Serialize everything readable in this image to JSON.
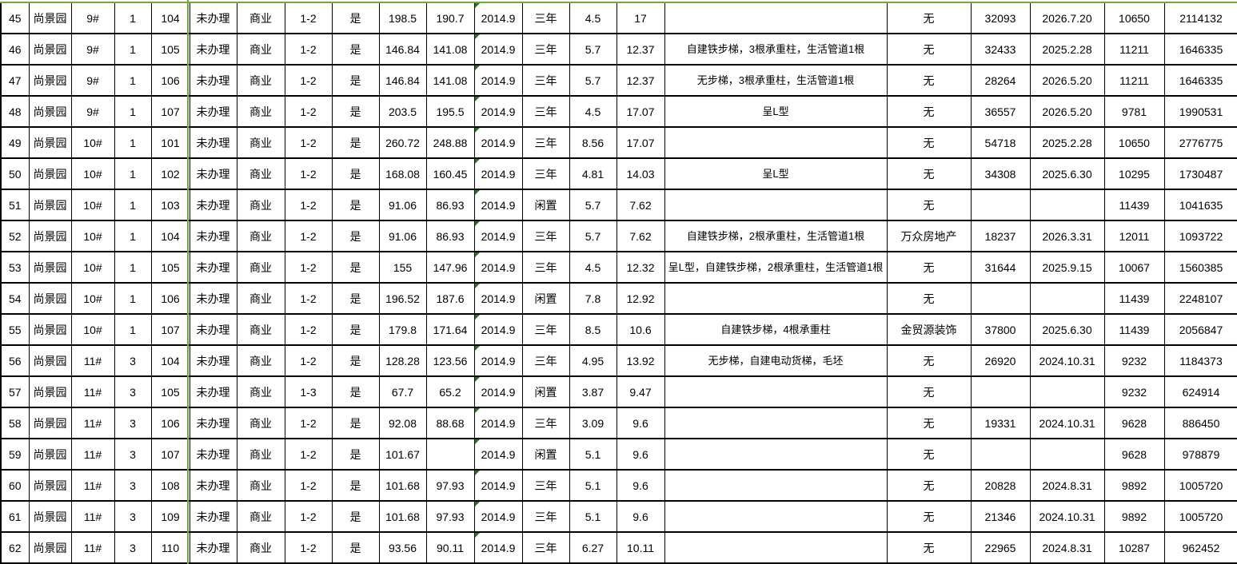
{
  "colors": {
    "freeze_line_green": "#70A83C",
    "error_triangle_green": "#1E7B1E",
    "cell_border": "#000000",
    "text": "#000000",
    "background": "#FFFFFF"
  },
  "rows": [
    [
      "45",
      "尚景园",
      "9#",
      "1",
      "104",
      "未办理",
      "商业",
      "1-2",
      "是",
      "198.5",
      "190.7",
      "2014.9",
      "三年",
      "4.5",
      "17",
      "",
      "无",
      "32093",
      "2026.7.20",
      "10650",
      "2114132"
    ],
    [
      "46",
      "尚景园",
      "9#",
      "1",
      "105",
      "未办理",
      "商业",
      "1-2",
      "是",
      "146.84",
      "141.08",
      "2014.9",
      "三年",
      "5.7",
      "12.37",
      "自建铁步梯，3根承重柱，生活管道1根",
      "无",
      "32433",
      "2025.2.28",
      "11211",
      "1646335"
    ],
    [
      "47",
      "尚景园",
      "9#",
      "1",
      "106",
      "未办理",
      "商业",
      "1-2",
      "是",
      "146.84",
      "141.08",
      "2014.9",
      "三年",
      "5.7",
      "12.37",
      "无步梯，3根承重柱，生活管道1根",
      "无",
      "28264",
      "2026.5.20",
      "11211",
      "1646335"
    ],
    [
      "48",
      "尚景园",
      "9#",
      "1",
      "107",
      "未办理",
      "商业",
      "1-2",
      "是",
      "203.5",
      "195.5",
      "2014.9",
      "三年",
      "4.5",
      "17.07",
      "呈L型",
      "无",
      "36557",
      "2026.5.20",
      "9781",
      "1990531"
    ],
    [
      "49",
      "尚景园",
      "10#",
      "1",
      "101",
      "未办理",
      "商业",
      "1-2",
      "是",
      "260.72",
      "248.88",
      "2014.9",
      "三年",
      "8.56",
      "17.07",
      "",
      "无",
      "54718",
      "2025.2.28",
      "10650",
      "2776775"
    ],
    [
      "50",
      "尚景园",
      "10#",
      "1",
      "102",
      "未办理",
      "商业",
      "1-2",
      "是",
      "168.08",
      "160.45",
      "2014.9",
      "三年",
      "4.81",
      "14.03",
      "呈L型",
      "无",
      "34308",
      "2025.6.30",
      "10295",
      "1730487"
    ],
    [
      "51",
      "尚景园",
      "10#",
      "1",
      "103",
      "未办理",
      "商业",
      "1-2",
      "是",
      "91.06",
      "86.93",
      "2014.9",
      "闲置",
      "5.7",
      "7.62",
      "",
      "无",
      "",
      "",
      "11439",
      "1041635"
    ],
    [
      "52",
      "尚景园",
      "10#",
      "1",
      "104",
      "未办理",
      "商业",
      "1-2",
      "是",
      "91.06",
      "86.93",
      "2014.9",
      "三年",
      "5.7",
      "7.62",
      "自建铁步梯，2根承重柱，生活管道1根",
      "万众房地产",
      "18237",
      "2026.3.31",
      "12011",
      "1093722"
    ],
    [
      "53",
      "尚景园",
      "10#",
      "1",
      "105",
      "未办理",
      "商业",
      "1-2",
      "是",
      "155",
      "147.96",
      "2014.9",
      "三年",
      "4.5",
      "12.32",
      "呈L型，自建铁步梯，2根承重柱，生活管道1根",
      "无",
      "31644",
      "2025.9.15",
      "10067",
      "1560385"
    ],
    [
      "54",
      "尚景园",
      "10#",
      "1",
      "106",
      "未办理",
      "商业",
      "1-2",
      "是",
      "196.52",
      "187.6",
      "2014.9",
      "闲置",
      "7.8",
      "12.92",
      "",
      "无",
      "",
      "",
      "11439",
      "2248107"
    ],
    [
      "55",
      "尚景园",
      "10#",
      "1",
      "107",
      "未办理",
      "商业",
      "1-2",
      "是",
      "179.8",
      "171.64",
      "2014.9",
      "三年",
      "8.5",
      "10.6",
      "自建铁步梯，4根承重柱",
      "金贸源装饰",
      "37800",
      "2025.6.30",
      "11439",
      "2056847"
    ],
    [
      "56",
      "尚景园",
      "11#",
      "3",
      "104",
      "未办理",
      "商业",
      "1-2",
      "是",
      "128.28",
      "123.56",
      "2014.9",
      "三年",
      "4.95",
      "13.92",
      "无步梯，自建电动货梯，毛坯",
      "无",
      "26920",
      "2024.10.31",
      "9232",
      "1184373"
    ],
    [
      "57",
      "尚景园",
      "11#",
      "3",
      "105",
      "未办理",
      "商业",
      "1-3",
      "是",
      "67.7",
      "65.2",
      "2014.9",
      "闲置",
      "3.87",
      "9.47",
      "",
      "无",
      "",
      "",
      "9232",
      "624914"
    ],
    [
      "58",
      "尚景园",
      "11#",
      "3",
      "106",
      "未办理",
      "商业",
      "1-2",
      "是",
      "92.08",
      "88.68",
      "2014.9",
      "三年",
      "3.09",
      "9.6",
      "",
      "无",
      "19331",
      "2024.10.31",
      "9628",
      "886450"
    ],
    [
      "59",
      "尚景园",
      "11#",
      "3",
      "107",
      "未办理",
      "商业",
      "1-2",
      "是",
      "101.67",
      "",
      "2014.9",
      "闲置",
      "5.1",
      "9.6",
      "",
      "无",
      "",
      "",
      "9628",
      "978879"
    ],
    [
      "60",
      "尚景园",
      "11#",
      "3",
      "108",
      "未办理",
      "商业",
      "1-2",
      "是",
      "101.68",
      "97.93",
      "2014.9",
      "三年",
      "5.1",
      "9.6",
      "",
      "无",
      "20828",
      "2024.8.31",
      "9892",
      "1005720"
    ],
    [
      "61",
      "尚景园",
      "11#",
      "3",
      "109",
      "未办理",
      "商业",
      "1-2",
      "是",
      "101.68",
      "97.93",
      "2014.9",
      "三年",
      "5.1",
      "9.6",
      "",
      "无",
      "21346",
      "2024.10.31",
      "9892",
      "1005720"
    ],
    [
      "62",
      "尚景园",
      "11#",
      "3",
      "110",
      "未办理",
      "商业",
      "1-2",
      "是",
      "93.56",
      "90.11",
      "2014.9",
      "三年",
      "6.27",
      "10.11",
      "",
      "无",
      "22965",
      "2024.8.31",
      "10287",
      "962452"
    ]
  ]
}
